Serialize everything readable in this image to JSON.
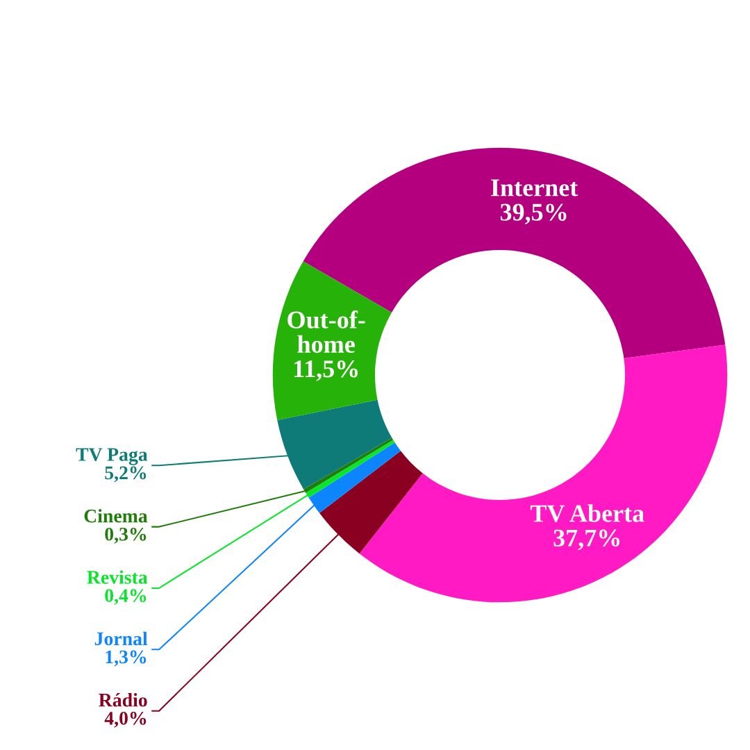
{
  "chart_data": {
    "type": "donut",
    "categories": [
      "Internet",
      "TV Aberta",
      "Rádio",
      "Jornal",
      "Revista",
      "Cinema",
      "TV Paga",
      "Out-of-home"
    ],
    "values": [
      39.5,
      37.7,
      4.0,
      1.3,
      0.4,
      0.3,
      5.2,
      11.5
    ],
    "value_labels": [
      "39,5%",
      "37,7%",
      "4,0%",
      "1,3%",
      "0,4%",
      "0,3%",
      "5,2%",
      "11,5%"
    ],
    "colors": [
      "#b4007f",
      "#ff1ac4",
      "#8a0020",
      "#0d85ff",
      "#08e52a",
      "#217d0a",
      "#0e7b78",
      "#27b20a"
    ],
    "legend": false
  }
}
